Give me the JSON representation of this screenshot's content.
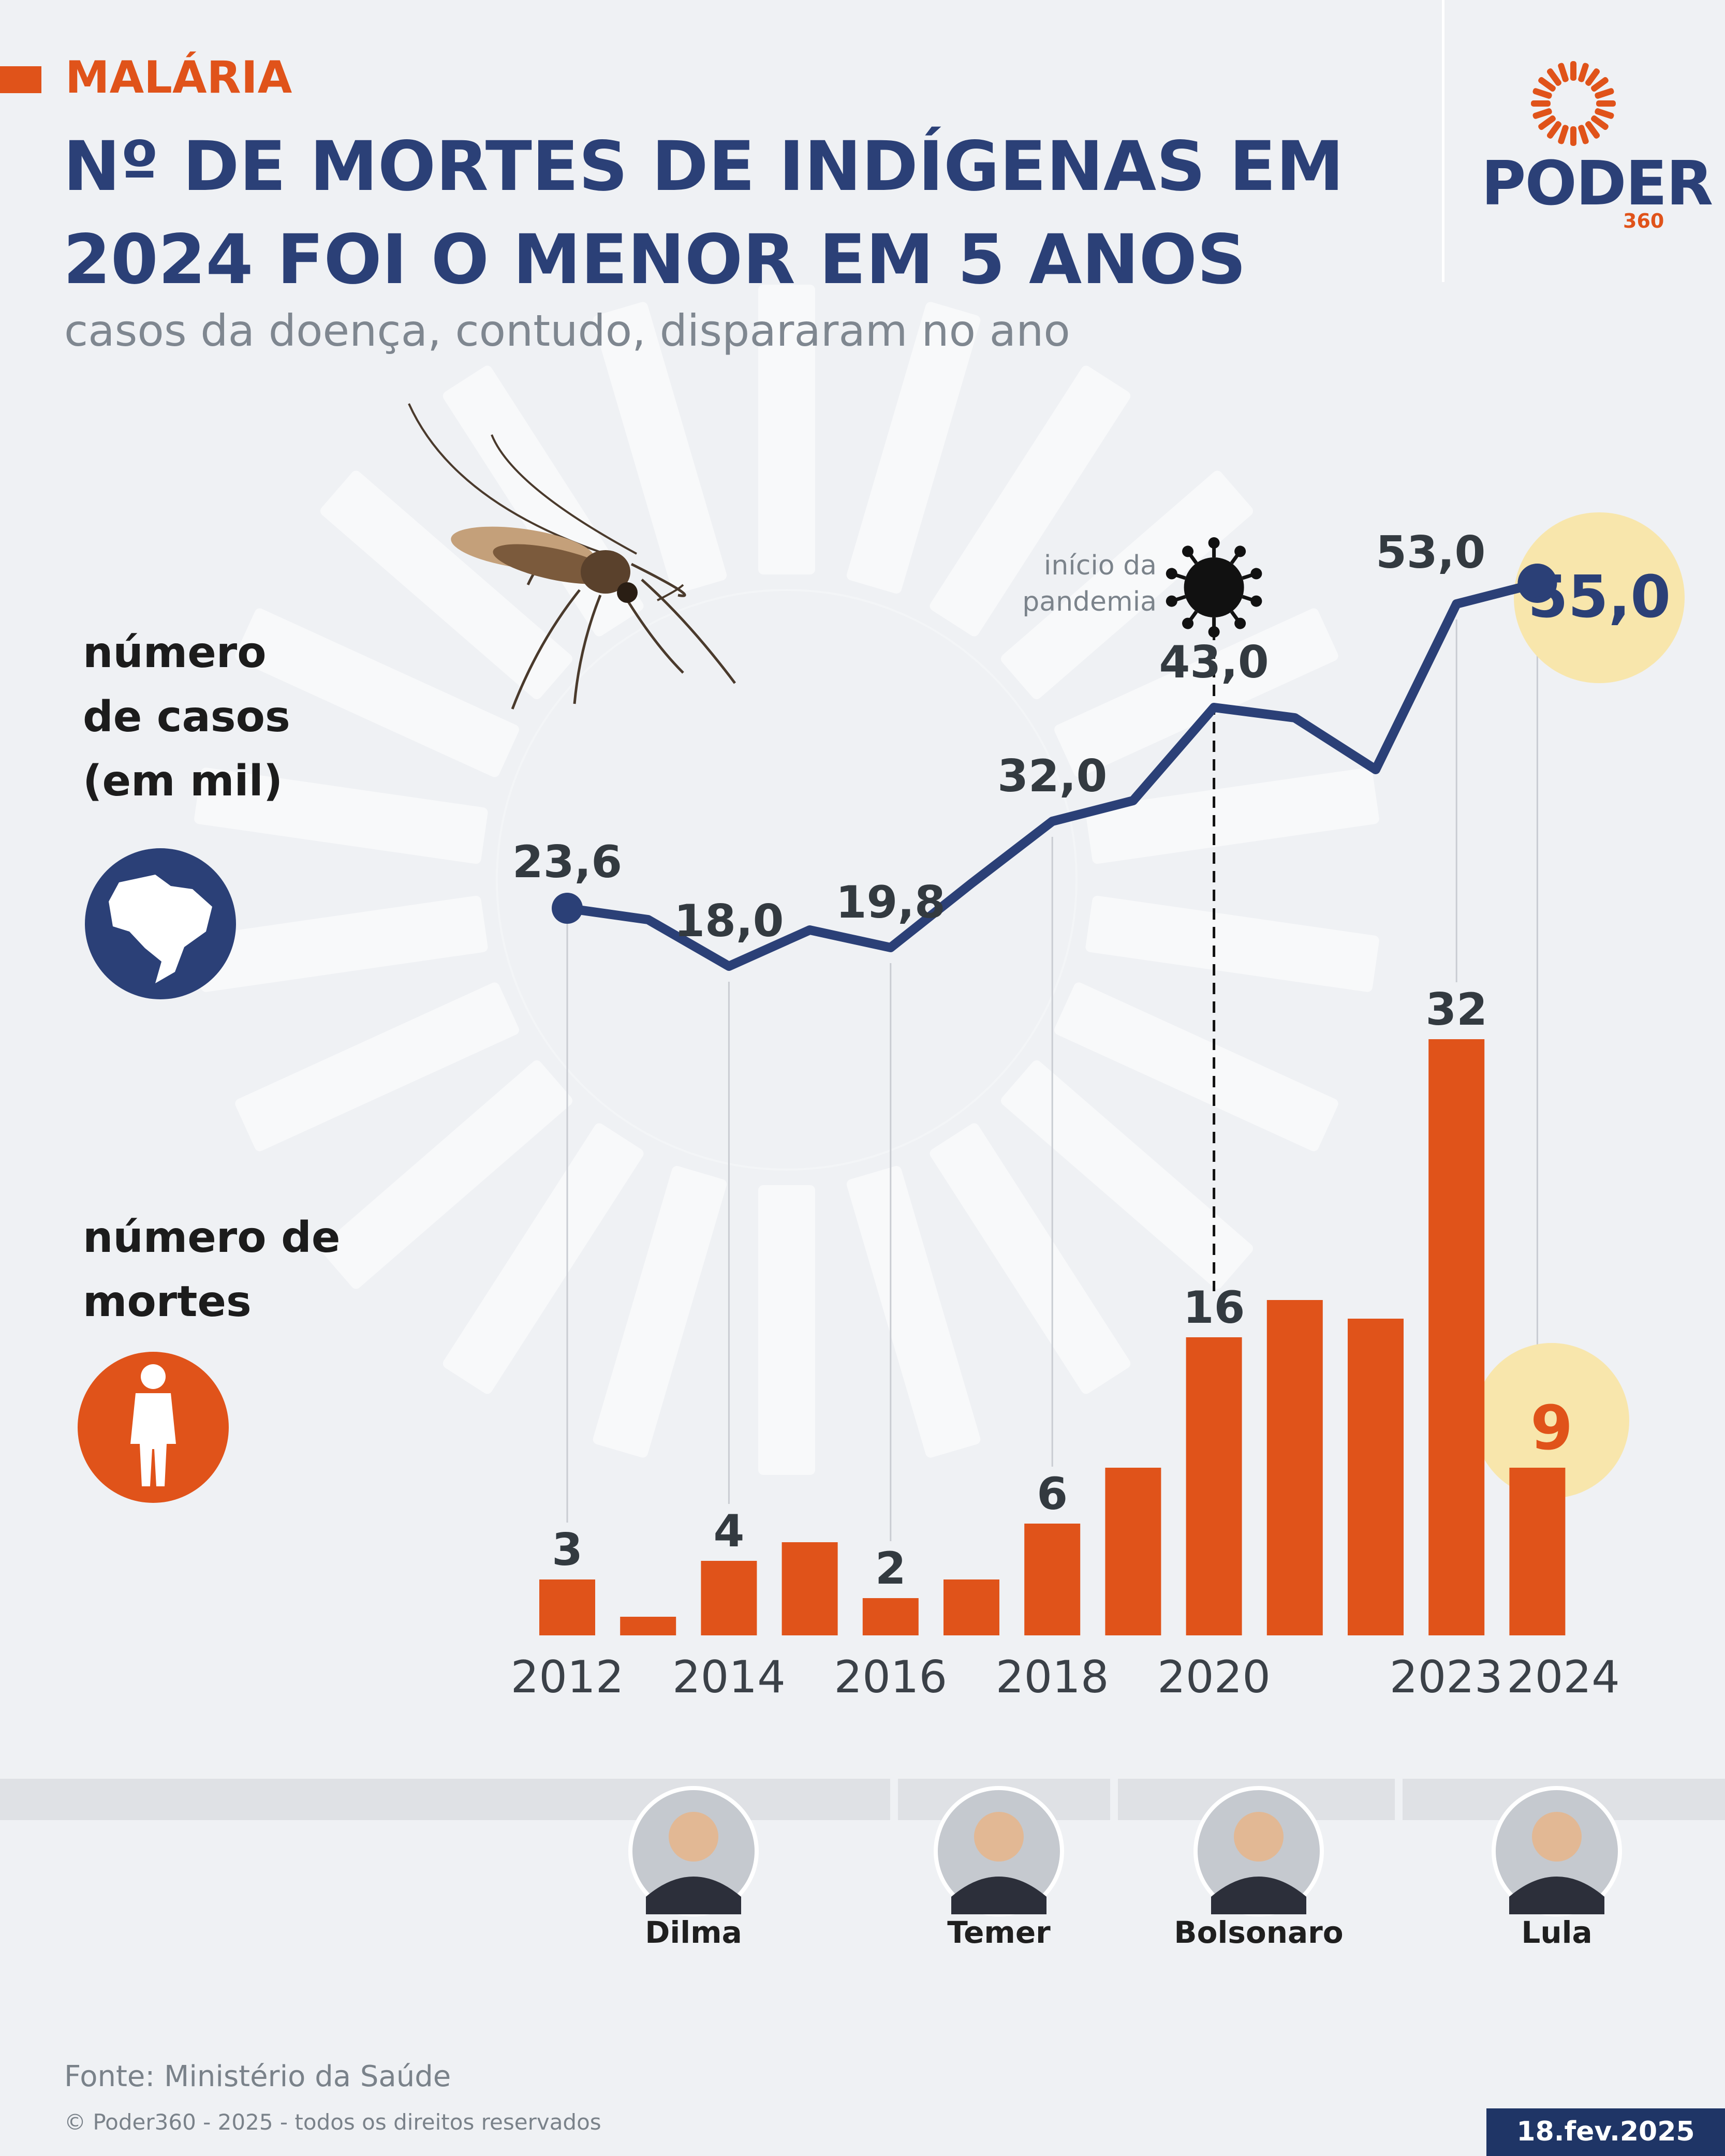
{
  "header": {
    "tag": "MALÁRIA",
    "title_line1": "Nº DE MORTES DE INDÍGENAS EM",
    "title_line2": "2024 FOI O MENOR EM 5 ANOS",
    "subtitle": "casos da doença, contudo, dispararam no ano"
  },
  "logo": {
    "word": "PODER",
    "number": "360",
    "icon": "sun-burst-logo-icon"
  },
  "colors": {
    "navy": "#2b4077",
    "orange": "#e0531a",
    "highlight": "#f8e6ac",
    "background": "#eff1f4"
  },
  "legend": {
    "cases_label": [
      "número",
      "de casos",
      "(em mil)"
    ],
    "cases_icon": "brazil-map-icon",
    "deaths_label": [
      "número de",
      "mortes"
    ],
    "deaths_icon": "person-icon"
  },
  "annotation": {
    "pandemic": [
      "início da",
      "pandemia"
    ],
    "icon": "virus-icon"
  },
  "chart_data": [
    {
      "type": "line",
      "ylabel": "número de casos (em mil)",
      "x": [
        2012,
        2013,
        2014,
        2015,
        2016,
        2017,
        2018,
        2019,
        2020,
        2021,
        2022,
        2023,
        2024
      ],
      "values": [
        23.6,
        22.5,
        18.0,
        21.5,
        19.8,
        26.0,
        32.0,
        34.0,
        43.0,
        42.0,
        37.0,
        53.0,
        55.0
      ],
      "labels": {
        "2012": "23,6",
        "2014": "18,0",
        "2016": "19,8",
        "2018": "32,0",
        "2020": "43,0",
        "2023": "53,0",
        "2024": "55,0"
      },
      "highlight": 2024
    },
    {
      "type": "bar",
      "ylabel": "número de mortes",
      "categories": [
        2012,
        2013,
        2014,
        2015,
        2016,
        2017,
        2018,
        2019,
        2020,
        2021,
        2022,
        2023,
        2024
      ],
      "values": [
        3,
        1,
        4,
        5,
        2,
        3,
        6,
        9,
        16,
        18,
        17,
        32,
        9
      ],
      "labels": {
        "2012": "3",
        "2014": "4",
        "2016": "2",
        "2018": "6",
        "2020": "16",
        "2023": "32",
        "2024": "9"
      },
      "highlight": 2024
    }
  ],
  "x_axis_ticks": [
    "2012",
    "2014",
    "2016",
    "2018",
    "2020",
    "2023",
    "2024"
  ],
  "presidents": [
    {
      "name": "Dilma",
      "icon": "portrait-icon"
    },
    {
      "name": "Temer",
      "icon": "portrait-icon"
    },
    {
      "name": "Bolsonaro",
      "icon": "portrait-icon"
    },
    {
      "name": "Lula",
      "icon": "portrait-icon"
    }
  ],
  "footer": {
    "source": "Fonte: Ministério da Saúde",
    "copyright": "© Poder360 - 2025 - todos os direitos reservados",
    "date": "18.fev.2025"
  }
}
